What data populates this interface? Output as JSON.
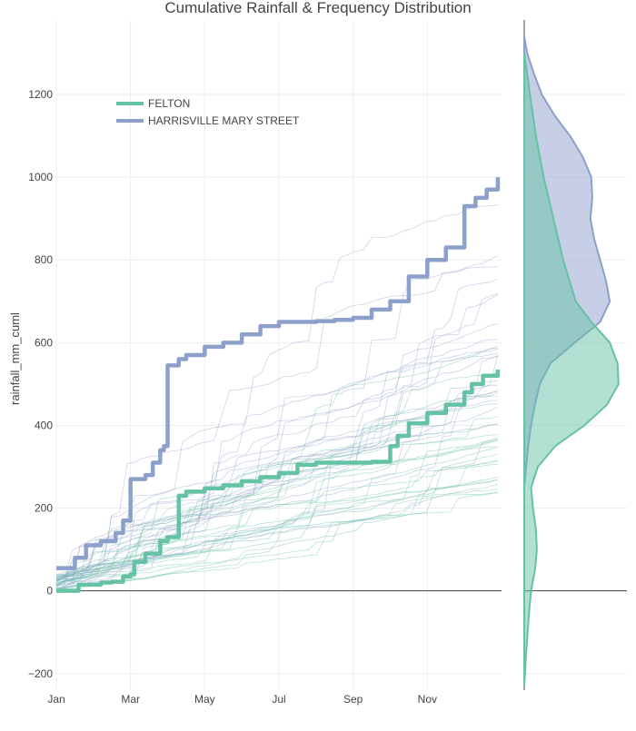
{
  "chart_data": {
    "type": "line",
    "title": "Cumulative Rainfall & Frequency Distribution",
    "xlabel": "",
    "ylabel": "rainfall_mm_cuml",
    "x_ticks": [
      "Jan",
      "Mar",
      "May",
      "Jul",
      "Sep",
      "Nov"
    ],
    "x_range_months": [
      0,
      12
    ],
    "y_ticks": [
      -200,
      0,
      200,
      400,
      600,
      800,
      1000,
      1200
    ],
    "ylim": [
      -240,
      1380
    ],
    "grid": true,
    "legend_position": "top-left",
    "series": [
      {
        "name": "FELTON",
        "color": "#66c2a5",
        "x_months": [
          0,
          0.6,
          1.2,
          1.5,
          1.8,
          2.0,
          2.1,
          2.4,
          2.8,
          3.0,
          3.3,
          3.5,
          4.0,
          4.5,
          5.0,
          5.5,
          6.0,
          6.5,
          7.0,
          7.5,
          8.0,
          8.5,
          9.0,
          9.2,
          9.5,
          10.0,
          10.5,
          11.0,
          11.2,
          11.5,
          11.9
        ],
        "values": [
          0,
          15,
          20,
          22,
          35,
          40,
          70,
          90,
          120,
          130,
          230,
          240,
          248,
          255,
          265,
          275,
          285,
          305,
          310,
          310,
          310,
          312,
          350,
          375,
          405,
          430,
          450,
          480,
          500,
          520,
          535
        ]
      },
      {
        "name": "HARRISVILLE MARY STREET",
        "color": "#8da0cb",
        "x_months": [
          0,
          0.5,
          0.8,
          1.2,
          1.6,
          1.8,
          2.0,
          2.4,
          2.6,
          2.8,
          2.9,
          3.0,
          3.3,
          3.5,
          4.0,
          4.5,
          5.0,
          5.5,
          6.0,
          6.5,
          7.0,
          7.5,
          8.0,
          8.5,
          9.0,
          9.5,
          10.0,
          10.5,
          11.0,
          11.3,
          11.6,
          11.9
        ],
        "values": [
          55,
          80,
          110,
          120,
          140,
          170,
          270,
          280,
          310,
          340,
          350,
          545,
          560,
          570,
          590,
          600,
          620,
          640,
          650,
          650,
          652,
          655,
          660,
          680,
          700,
          760,
          800,
          830,
          930,
          950,
          970,
          1000
        ]
      }
    ],
    "density": [
      {
        "name": "FELTON",
        "color": "#66c2a5",
        "y_values": [
          -230,
          -150,
          -50,
          0,
          50,
          100,
          150,
          200,
          250,
          300,
          350,
          400,
          450,
          500,
          550,
          600,
          650,
          700,
          800,
          900,
          1000,
          1100,
          1200,
          1300
        ],
        "density": [
          0.0,
          0.02,
          0.05,
          0.07,
          0.11,
          0.13,
          0.12,
          0.09,
          0.07,
          0.14,
          0.32,
          0.62,
          0.85,
          0.97,
          0.96,
          0.88,
          0.69,
          0.53,
          0.4,
          0.3,
          0.2,
          0.12,
          0.06,
          0.0
        ]
      },
      {
        "name": "HARRISVILLE MARY STREET",
        "color": "#8da0cb",
        "y_values": [
          250,
          300,
          350,
          400,
          450,
          500,
          550,
          600,
          650,
          700,
          750,
          800,
          850,
          900,
          950,
          1000,
          1050,
          1100,
          1150,
          1200,
          1250,
          1300,
          1340
        ],
        "density": [
          0.0,
          0.02,
          0.04,
          0.07,
          0.11,
          0.16,
          0.27,
          0.52,
          0.78,
          0.88,
          0.84,
          0.78,
          0.72,
          0.68,
          0.7,
          0.69,
          0.6,
          0.47,
          0.31,
          0.18,
          0.1,
          0.03,
          0.0
        ]
      }
    ]
  }
}
